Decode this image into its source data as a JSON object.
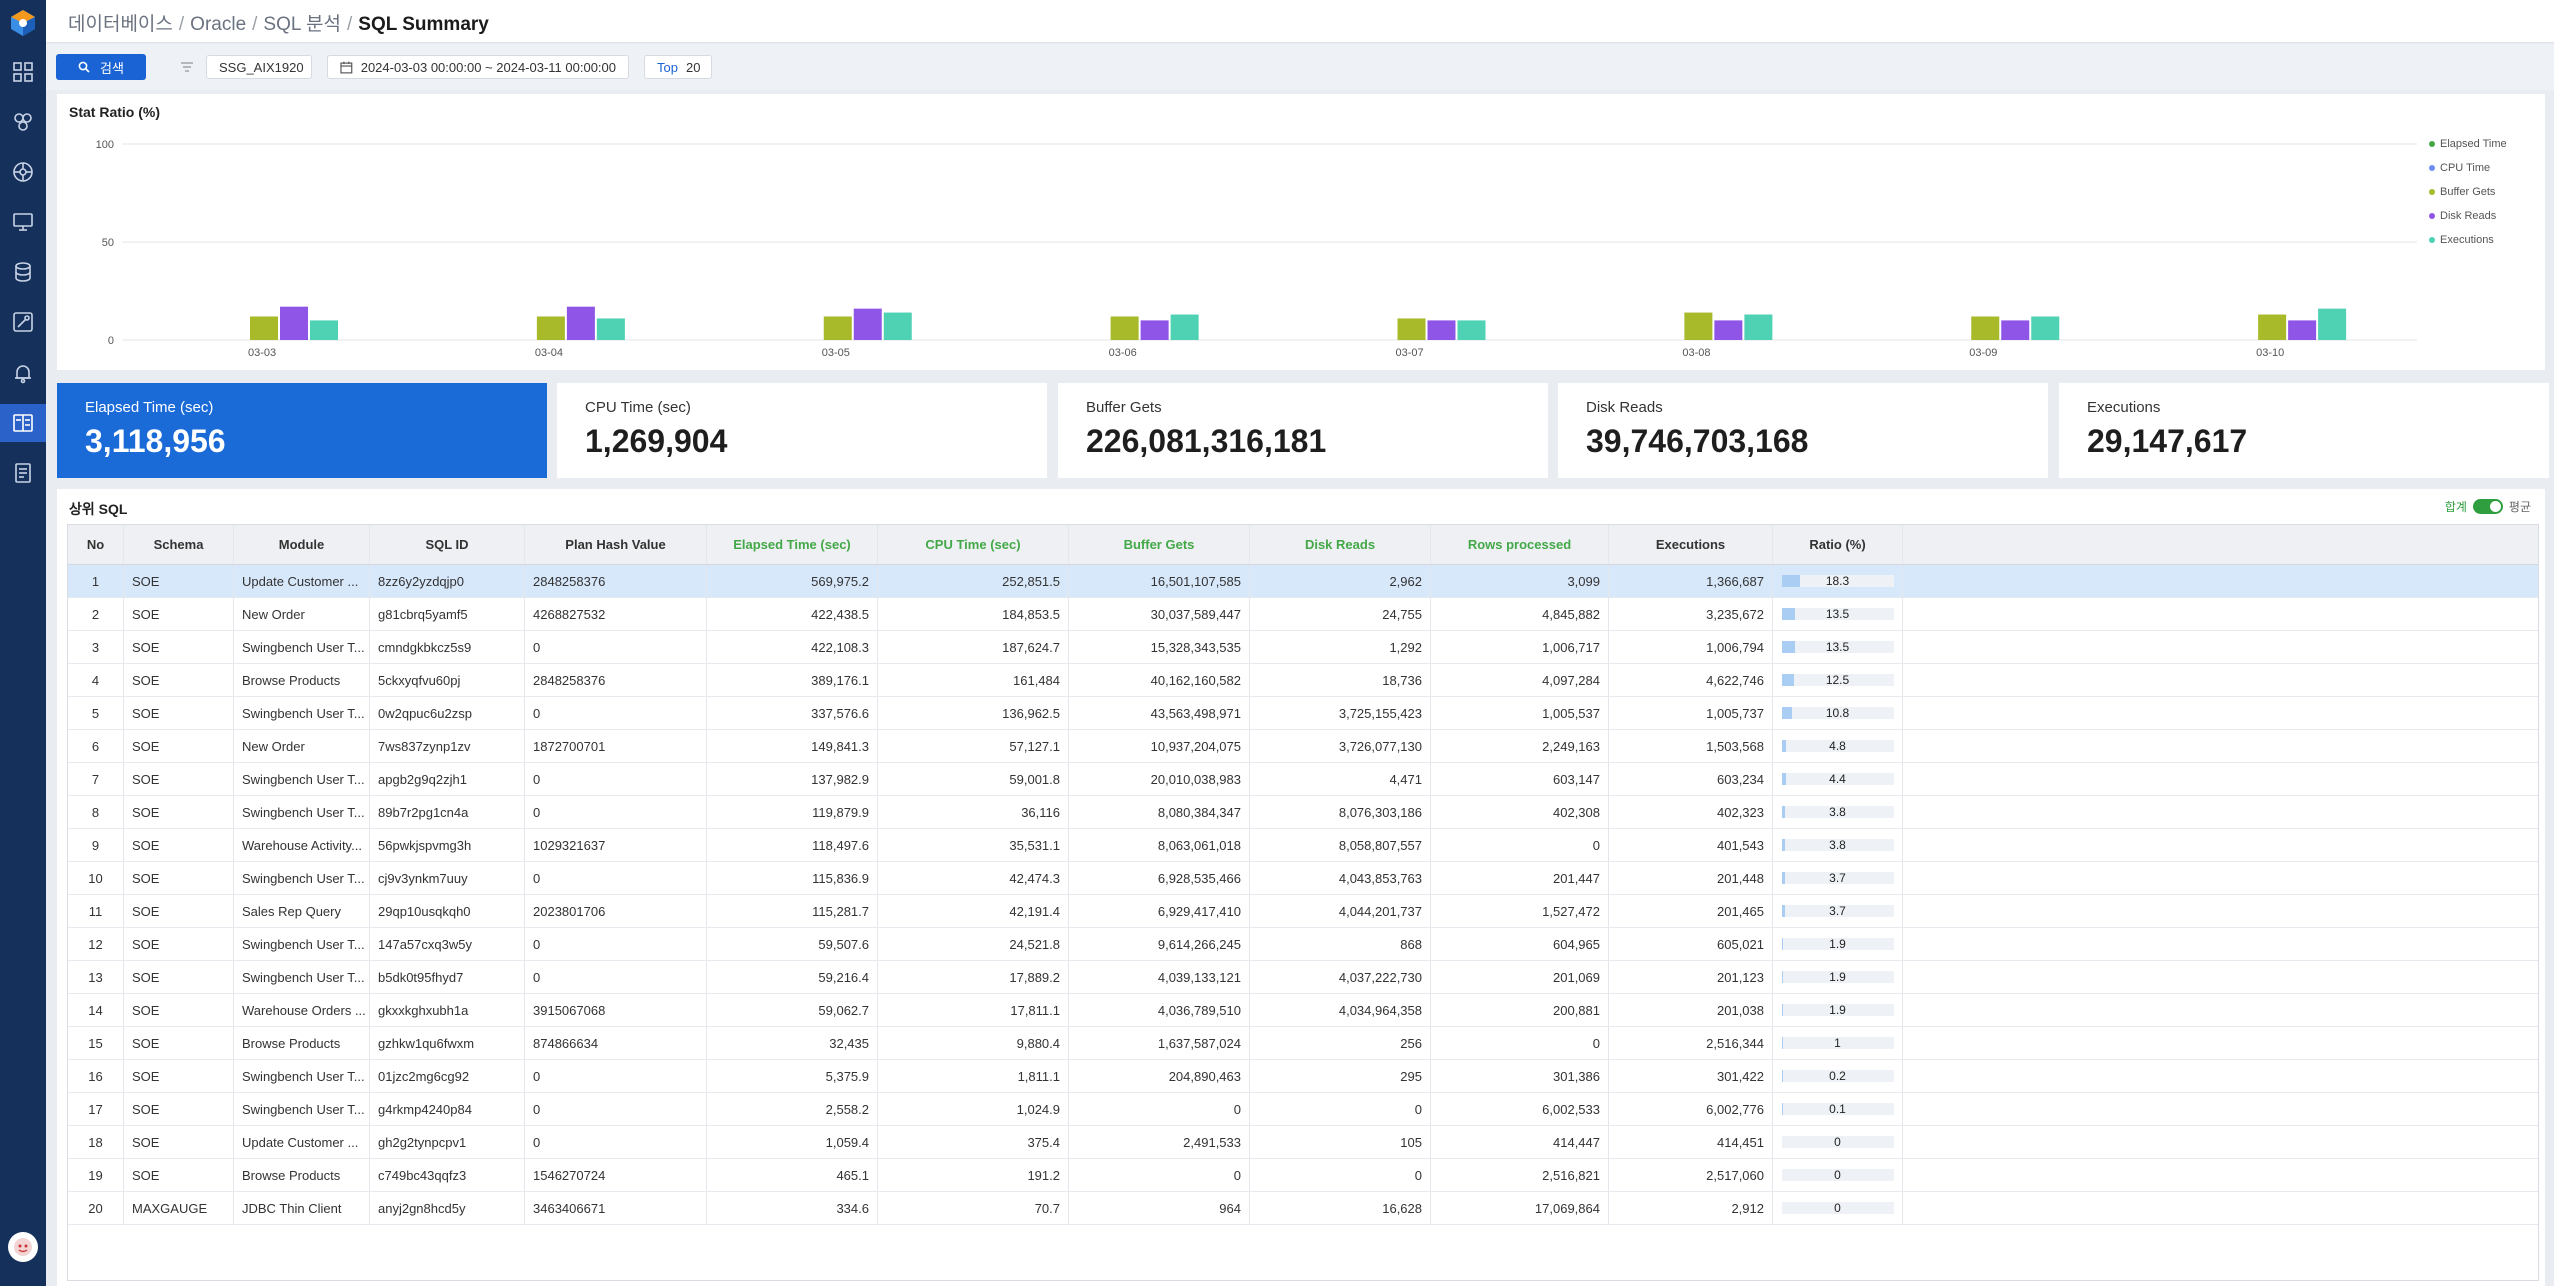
{
  "breadcrumb": {
    "items": [
      "데이터베이스",
      "Oracle",
      "SQL 분석"
    ],
    "current": "SQL Summary"
  },
  "toolbar": {
    "search_label": "검색",
    "instance": "SSG_AIX1920",
    "date_range": "2024-03-03 00:00:00 ~ 2024-03-11 00:00:00",
    "top_label": "Top",
    "top_value": "20"
  },
  "chart": {
    "title": "Stat Ratio (%)"
  },
  "chart_data": {
    "type": "bar",
    "categories": [
      "03-03",
      "03-04",
      "03-05",
      "03-06",
      "03-07",
      "03-08",
      "03-09",
      "03-10"
    ],
    "series": [
      {
        "name": "Elapsed Time",
        "values": [
          0,
          0,
          0,
          0,
          0,
          0,
          0,
          0
        ],
        "color": "#43a847"
      },
      {
        "name": "CPU Time",
        "values": [
          0,
          0,
          0,
          0,
          0,
          0,
          0,
          0
        ],
        "color": "#6b8ff0"
      },
      {
        "name": "Buffer Gets",
        "values": [
          12,
          12,
          12,
          12,
          11,
          14,
          12,
          13
        ],
        "color": "#a8b92a"
      },
      {
        "name": "Disk Reads",
        "values": [
          17,
          17,
          16,
          10,
          10,
          10,
          10,
          10
        ],
        "color": "#8e55e6"
      },
      {
        "name": "Executions",
        "values": [
          10,
          11,
          14,
          13,
          10,
          13,
          12,
          16
        ],
        "color": "#4fd1b4"
      }
    ],
    "ylim": [
      0,
      100
    ],
    "yticks": [
      "0",
      "50",
      "100"
    ],
    "grid": true,
    "legend": "right"
  },
  "cards": [
    {
      "label": "Elapsed Time (sec)",
      "value": "3,118,956"
    },
    {
      "label": "CPU Time (sec)",
      "value": "1,269,904"
    },
    {
      "label": "Buffer Gets",
      "value": "226,081,316,181"
    },
    {
      "label": "Disk Reads",
      "value": "39,746,703,168"
    },
    {
      "label": "Executions",
      "value": "29,147,617"
    }
  ],
  "table": {
    "title": "상위 SQL",
    "toggle_on": "합계",
    "toggle_off": "평균",
    "headers": [
      "No",
      "Schema",
      "Module",
      "SQL ID",
      "Plan Hash Value",
      "Elapsed Time (sec)",
      "CPU Time (sec)",
      "Buffer Gets",
      "Disk Reads",
      "Rows processed",
      "Executions",
      "Ratio (%)"
    ],
    "rows": [
      [
        "1",
        "SOE",
        "Update Customer ...",
        "8zz6y2yzdqjp0",
        "2848258376",
        "569,975.2",
        "252,851.5",
        "16,501,107,585",
        "2,962",
        "3,099",
        "1,366,687",
        "18.3"
      ],
      [
        "2",
        "SOE",
        "New Order",
        "g81cbrq5yamf5",
        "4268827532",
        "422,438.5",
        "184,853.5",
        "30,037,589,447",
        "24,755",
        "4,845,882",
        "3,235,672",
        "13.5"
      ],
      [
        "3",
        "SOE",
        "Swingbench User T...",
        "cmndgkbkcz5s9",
        "0",
        "422,108.3",
        "187,624.7",
        "15,328,343,535",
        "1,292",
        "1,006,717",
        "1,006,794",
        "13.5"
      ],
      [
        "4",
        "SOE",
        "Browse Products",
        "5ckxyqfvu60pj",
        "2848258376",
        "389,176.1",
        "161,484",
        "40,162,160,582",
        "18,736",
        "4,097,284",
        "4,622,746",
        "12.5"
      ],
      [
        "5",
        "SOE",
        "Swingbench User T...",
        "0w2qpuc6u2zsp",
        "0",
        "337,576.6",
        "136,962.5",
        "43,563,498,971",
        "3,725,155,423",
        "1,005,537",
        "1,005,737",
        "10.8"
      ],
      [
        "6",
        "SOE",
        "New Order",
        "7ws837zynp1zv",
        "1872700701",
        "149,841.3",
        "57,127.1",
        "10,937,204,075",
        "3,726,077,130",
        "2,249,163",
        "1,503,568",
        "4.8"
      ],
      [
        "7",
        "SOE",
        "Swingbench User T...",
        "apgb2g9q2zjh1",
        "0",
        "137,982.9",
        "59,001.8",
        "20,010,038,983",
        "4,471",
        "603,147",
        "603,234",
        "4.4"
      ],
      [
        "8",
        "SOE",
        "Swingbench User T...",
        "89b7r2pg1cn4a",
        "0",
        "119,879.9",
        "36,116",
        "8,080,384,347",
        "8,076,303,186",
        "402,308",
        "402,323",
        "3.8"
      ],
      [
        "9",
        "SOE",
        "Warehouse Activity...",
        "56pwkjspvmg3h",
        "1029321637",
        "118,497.6",
        "35,531.1",
        "8,063,061,018",
        "8,058,807,557",
        "0",
        "401,543",
        "3.8"
      ],
      [
        "10",
        "SOE",
        "Swingbench User T...",
        "cj9v3ynkm7uuy",
        "0",
        "115,836.9",
        "42,474.3",
        "6,928,535,466",
        "4,043,853,763",
        "201,447",
        "201,448",
        "3.7"
      ],
      [
        "11",
        "SOE",
        "Sales Rep Query",
        "29qp10usqkqh0",
        "2023801706",
        "115,281.7",
        "42,191.4",
        "6,929,417,410",
        "4,044,201,737",
        "1,527,472",
        "201,465",
        "3.7"
      ],
      [
        "12",
        "SOE",
        "Swingbench User T...",
        "147a57cxq3w5y",
        "0",
        "59,507.6",
        "24,521.8",
        "9,614,266,245",
        "868",
        "604,965",
        "605,021",
        "1.9"
      ],
      [
        "13",
        "SOE",
        "Swingbench User T...",
        "b5dk0t95fhyd7",
        "0",
        "59,216.4",
        "17,889.2",
        "4,039,133,121",
        "4,037,222,730",
        "201,069",
        "201,123",
        "1.9"
      ],
      [
        "14",
        "SOE",
        "Warehouse Orders ...",
        "gkxxkghxubh1a",
        "3915067068",
        "59,062.7",
        "17,811.1",
        "4,036,789,510",
        "4,034,964,358",
        "200,881",
        "201,038",
        "1.9"
      ],
      [
        "15",
        "SOE",
        "Browse Products",
        "gzhkw1qu6fwxm",
        "874866634",
        "32,435",
        "9,880.4",
        "1,637,587,024",
        "256",
        "0",
        "2,516,344",
        "1"
      ],
      [
        "16",
        "SOE",
        "Swingbench User T...",
        "01jzc2mg6cg92",
        "0",
        "5,375.9",
        "1,811.1",
        "204,890,463",
        "295",
        "301,386",
        "301,422",
        "0.2"
      ],
      [
        "17",
        "SOE",
        "Swingbench User T...",
        "g4rkmp4240p84",
        "0",
        "2,558.2",
        "1,024.9",
        "0",
        "0",
        "6,002,533",
        "6,002,776",
        "0.1"
      ],
      [
        "18",
        "SOE",
        "Update Customer ...",
        "gh2g2tynpcpv1",
        "0",
        "1,059.4",
        "375.4",
        "2,491,533",
        "105",
        "414,447",
        "414,451",
        "0"
      ],
      [
        "19",
        "SOE",
        "Browse Products",
        "c749bc43qqfz3",
        "1546270724",
        "465.1",
        "191.2",
        "0",
        "0",
        "2,516,821",
        "2,517,060",
        "0"
      ],
      [
        "20",
        "MAXGAUGE",
        "JDBC Thin Client",
        "anyj2gn8hcd5y",
        "3463406671",
        "334.6",
        "70.7",
        "964",
        "16,628",
        "17,069,864",
        "2,912",
        "0"
      ]
    ]
  }
}
